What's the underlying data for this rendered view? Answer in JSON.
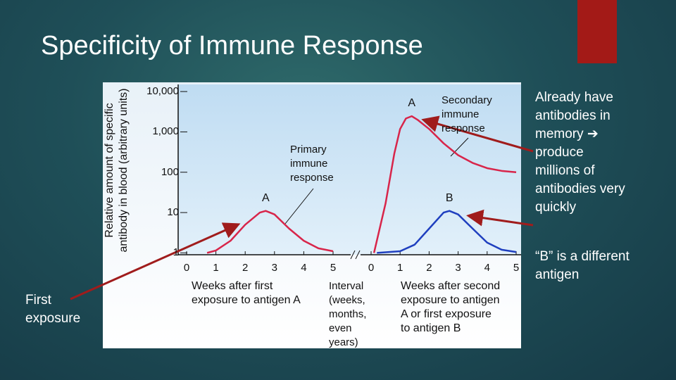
{
  "title": "Specificity of Immune Response",
  "notes": [
    "Already have\nantibodies in\nmemory ➔\nproduce\nmillions of\nantibodies very\nquickly",
    "“B” is a different\nantigen",
    "First\nexposure"
  ],
  "interval_label": "Interval\n(weeks,\nmonths,\neven\nyears)",
  "chart_data": [
    {
      "type": "line",
      "ylabel": "Relative amount of specific\nantibody in blood (arbitrary units)",
      "xlabel": "Weeks after first\nexposure to antigen A",
      "ylog": true,
      "ylim": [
        0.9,
        15000
      ],
      "yticks": [
        {
          "value": 10000,
          "label": "10,000"
        },
        {
          "value": 1000,
          "label": "1,000"
        },
        100,
        10,
        1
      ],
      "xlim": [
        0,
        5
      ],
      "xticks": [
        0,
        1,
        2,
        3,
        4,
        5
      ],
      "annotations": [
        "Primary\nimmune\nresponse"
      ],
      "series": [
        {
          "name": "A",
          "color": "#d8254a",
          "x": [
            0.7,
            1,
            1.5,
            2,
            2.5,
            2.7,
            3,
            3.5,
            4,
            4.5,
            5
          ],
          "values": [
            1,
            1.15,
            2,
            5,
            10,
            11,
            9,
            4,
            2,
            1.3,
            1.1
          ]
        }
      ]
    },
    {
      "type": "line",
      "xlabel": "Weeks after second\nexposure to antigen\nA or first exposure\nto antigen B",
      "ylog": true,
      "ylim": [
        0.9,
        15000
      ],
      "xlim": [
        0,
        5
      ],
      "xticks": [
        0,
        1,
        2,
        3,
        4,
        5
      ],
      "annotations": [
        "Secondary\nimmune\nresponse"
      ],
      "series": [
        {
          "name": "A",
          "color": "#d8254a",
          "x": [
            0.1,
            0.5,
            0.8,
            1,
            1.2,
            1.4,
            1.6,
            2,
            2.5,
            3,
            3.5,
            4,
            4.5,
            5
          ],
          "values": [
            1,
            17,
            290,
            1180,
            2150,
            2450,
            2000,
            1180,
            520,
            265,
            170,
            126,
            108,
            100
          ]
        },
        {
          "name": "B",
          "color": "#1f3fbf",
          "x": [
            0.2,
            1,
            1.5,
            2,
            2.5,
            2.7,
            3,
            3.5,
            4,
            4.5,
            5
          ],
          "values": [
            1,
            1.1,
            1.6,
            4,
            10,
            11,
            9,
            4,
            1.8,
            1.2,
            1.05
          ]
        }
      ]
    }
  ]
}
